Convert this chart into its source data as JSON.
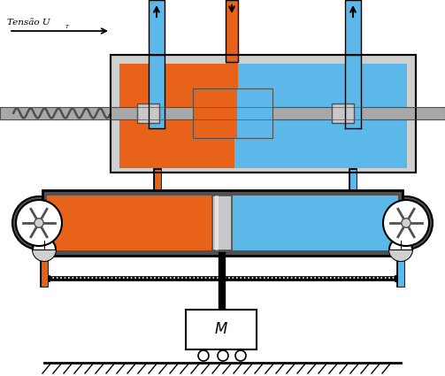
{
  "fig_width": 5.03,
  "fig_height": 4.25,
  "dpi": 100,
  "bg_color": "#ffffff",
  "orange": "#E8621A",
  "blue": "#5BB8E8",
  "gray_light": "#D0D0D0",
  "gray_med": "#A8A8A8",
  "gray_dark": "#505050",
  "black": "#000000",
  "silver": "#C8C8C8",
  "label_tensao": "Tensão U",
  "sub_t": "T",
  "label_M": "M"
}
